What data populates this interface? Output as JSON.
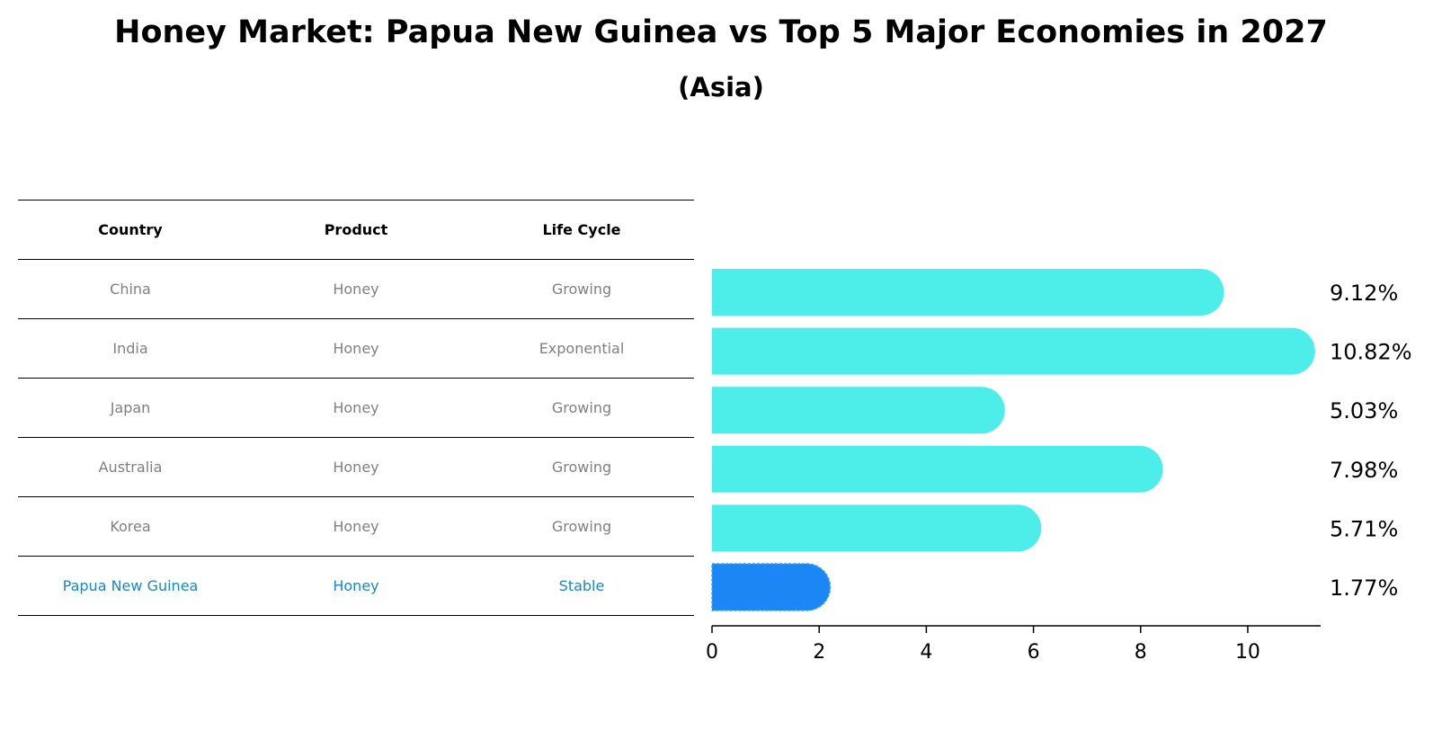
{
  "chart_data": {
    "type": "bar",
    "orientation": "horizontal",
    "title": "Honey Market: Papua New Guinea vs Top 5 Major Economies in 2027",
    "subtitle": "(Asia)",
    "categories": [
      "China",
      "India",
      "Japan",
      "Australia",
      "Korea",
      "Papua New Guinea"
    ],
    "values": [
      9.12,
      10.82,
      5.03,
      7.98,
      5.71,
      1.77
    ],
    "value_labels": [
      "9.12%",
      "10.82%",
      "5.03%",
      "7.98%",
      "5.71%",
      "1.77%"
    ],
    "xlim": [
      0,
      11.36
    ],
    "xticks": [
      0,
      2,
      4,
      6,
      8,
      10
    ],
    "xtick_labels": [
      "0",
      "2",
      "4",
      "6",
      "8",
      "10"
    ],
    "colors": {
      "default": "#4deeea",
      "highlight": "#1a87f5"
    },
    "highlight_index": 5
  },
  "table": {
    "headers": [
      "Country",
      "Product",
      "Life Cycle"
    ],
    "rows": [
      [
        "China",
        "Honey",
        "Growing"
      ],
      [
        "India",
        "Honey",
        "Exponential"
      ],
      [
        "Japan",
        "Honey",
        "Growing"
      ],
      [
        "Australia",
        "Honey",
        "Growing"
      ],
      [
        "Korea",
        "Honey",
        "Growing"
      ],
      [
        "Papua New Guinea",
        "Honey",
        "Stable"
      ]
    ]
  }
}
